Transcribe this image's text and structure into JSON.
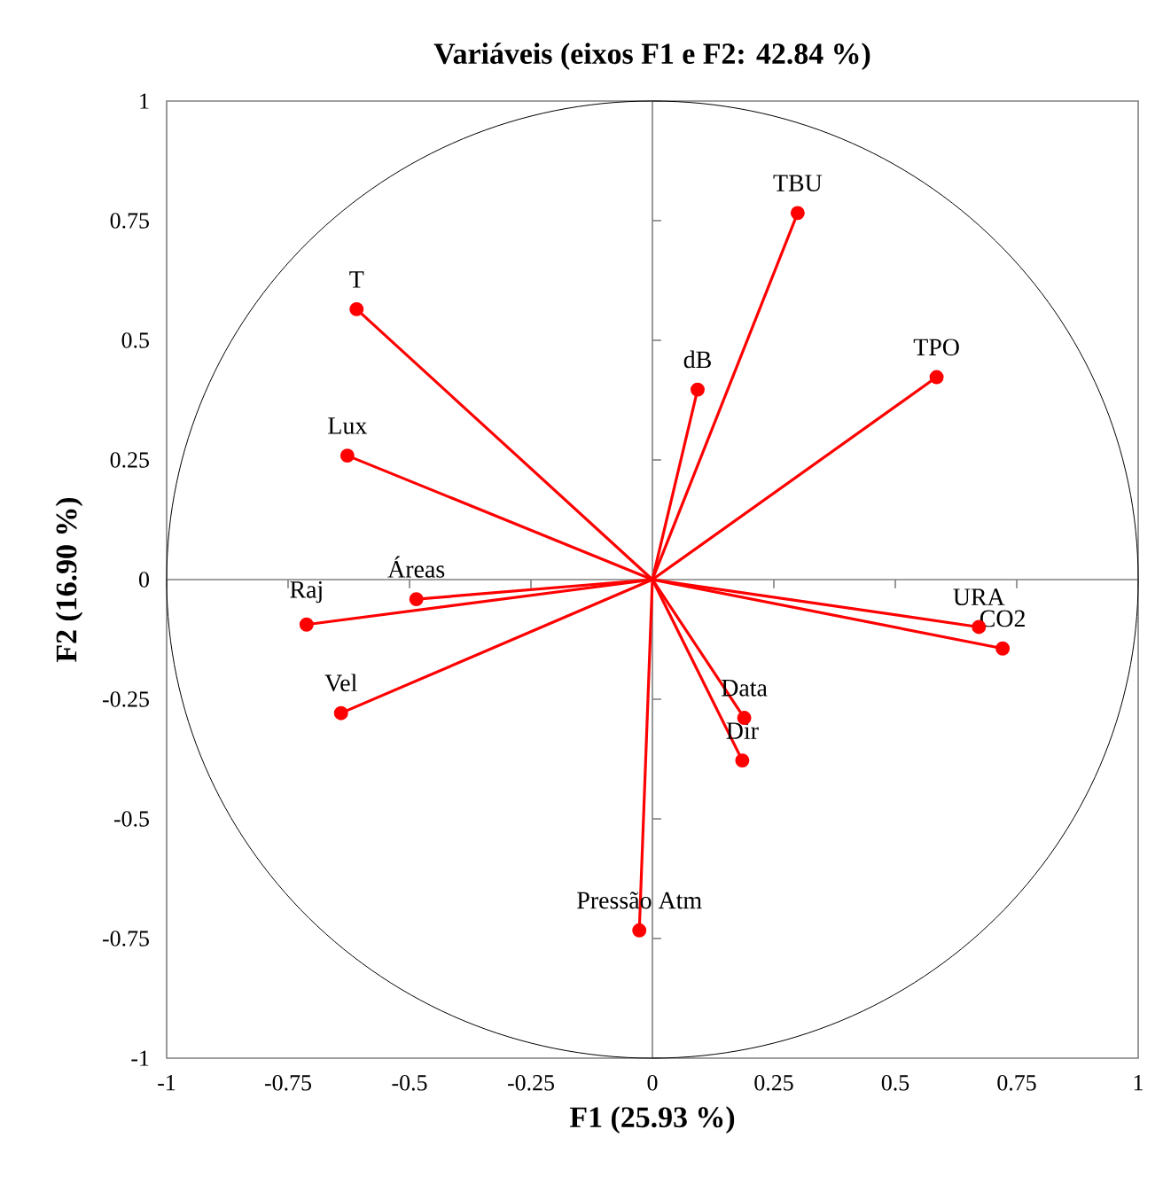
{
  "chart_data": {
    "type": "scatter",
    "title": "Variáveis (eixos F1 e F2: 42.84 %)",
    "xlabel": "F1 (25.93 %)",
    "ylabel": "F2 (16.90 %)",
    "x": [
      0.299,
      -0.609,
      0.093,
      0.585,
      -0.628,
      -0.486,
      -0.712,
      0.672,
      0.721,
      -0.641,
      0.189,
      0.185,
      -0.027
    ],
    "series": [
      {
        "color": "#ff0000",
        "values": [
          0.766,
          0.565,
          0.397,
          0.423,
          0.259,
          -0.041,
          -0.094,
          -0.099,
          -0.144,
          -0.279,
          -0.289,
          -0.378,
          -0.733
        ]
      }
    ],
    "annotations": [
      {
        "text": "TBU",
        "x": 0.299,
        "y": 0.766
      },
      {
        "text": "T",
        "x": -0.609,
        "y": 0.565
      },
      {
        "text": "dB",
        "x": 0.093,
        "y": 0.397
      },
      {
        "text": "TPO",
        "x": 0.585,
        "y": 0.423
      },
      {
        "text": "Lux",
        "x": -0.628,
        "y": 0.259
      },
      {
        "text": "Áreas",
        "x": -0.486,
        "y": -0.041
      },
      {
        "text": "Raj",
        "x": -0.712,
        "y": -0.094
      },
      {
        "text": "URA",
        "x": 0.672,
        "y": -0.099
      },
      {
        "text": "CO2",
        "x": 0.721,
        "y": -0.144
      },
      {
        "text": "Vel",
        "x": -0.641,
        "y": -0.279
      },
      {
        "text": "Data",
        "x": 0.189,
        "y": -0.289
      },
      {
        "text": "Dir",
        "x": 0.185,
        "y": -0.378
      },
      {
        "text": "Pressão Atm",
        "x": -0.027,
        "y": -0.733
      }
    ],
    "xlim": [
      -1,
      1
    ],
    "ylim": [
      -1,
      1
    ],
    "xticks": [
      -1,
      -0.75,
      -0.5,
      -0.25,
      0,
      0.25,
      0.5,
      0.75,
      1
    ],
    "yticks": [
      -1,
      -0.75,
      -0.5,
      -0.25,
      0,
      0.25,
      0.5,
      0.75,
      1
    ],
    "marker": "circle"
  }
}
